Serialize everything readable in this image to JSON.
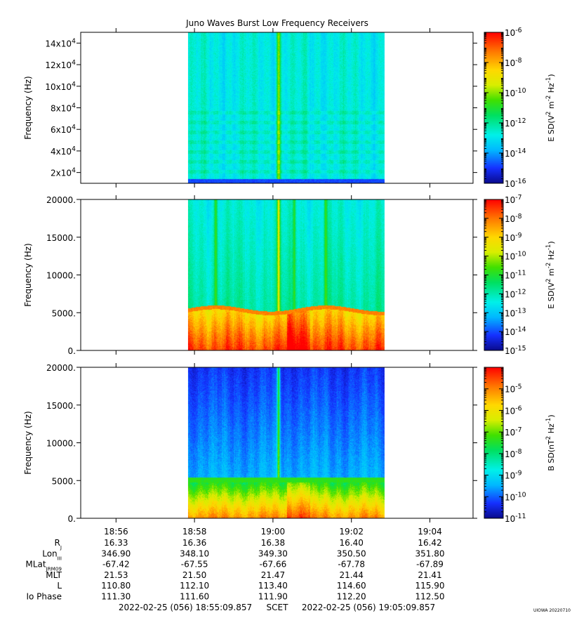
{
  "title": "Juno Waves Burst Low Frequency Receivers",
  "chart_data": [
    {
      "type": "heatmap",
      "name": "panel-1-electric-high",
      "ylabel": "Frequency (Hz)",
      "ylim": [
        10000,
        150000
      ],
      "yticks": [
        {
          "value": 20000,
          "mant": "2x10",
          "exp": "4"
        },
        {
          "value": 40000,
          "mant": "4x10",
          "exp": "4"
        },
        {
          "value": 60000,
          "mant": "6x10",
          "exp": "4"
        },
        {
          "value": 80000,
          "mant": "8x10",
          "exp": "4"
        },
        {
          "value": 100000,
          "mant": "10x10",
          "exp": "4"
        },
        {
          "value": 120000,
          "mant": "12x10",
          "exp": "4"
        },
        {
          "value": 140000,
          "mant": "14x10",
          "exp": "4"
        }
      ],
      "colorbar": {
        "label": "E SD (V^2 m^-2 Hz^-1)",
        "log": true,
        "range": [
          1e-16,
          1e-06
        ],
        "ticks": [
          {
            "mant": "10",
            "exp": "-6"
          },
          {
            "mant": "10",
            "exp": "-8"
          },
          {
            "mant": "10",
            "exp": "-10"
          },
          {
            "mant": "10",
            "exp": "-12"
          },
          {
            "mant": "10",
            "exp": "-14"
          },
          {
            "mant": "10",
            "exp": "-16"
          }
        ]
      },
      "data_time_range": [
        "18:57.9",
        "19:02.9"
      ],
      "features": {
        "background_level_log10": -13,
        "bright_vertical_line_time": "19:00.2",
        "lower_band_hz": 10000
      }
    },
    {
      "type": "heatmap",
      "name": "panel-2-electric-low",
      "ylabel": "Frequency (Hz)",
      "ylim": [
        0,
        20000
      ],
      "yticks": [
        {
          "value": 0,
          "label": "0."
        },
        {
          "value": 5000,
          "label": "5000."
        },
        {
          "value": 10000,
          "label": "10000."
        },
        {
          "value": 15000,
          "label": "15000."
        },
        {
          "value": 20000,
          "label": "20000."
        }
      ],
      "colorbar": {
        "label": "E SD (V^2 m^-2 Hz^-1)",
        "log": true,
        "range": [
          1e-15,
          1e-07
        ],
        "ticks": [
          {
            "mant": "10",
            "exp": "-7"
          },
          {
            "mant": "10",
            "exp": "-8"
          },
          {
            "mant": "10",
            "exp": "-9"
          },
          {
            "mant": "10",
            "exp": "-10"
          },
          {
            "mant": "10",
            "exp": "-11"
          },
          {
            "mant": "10",
            "exp": "-12"
          },
          {
            "mant": "10",
            "exp": "-13"
          },
          {
            "mant": "10",
            "exp": "-14"
          },
          {
            "mant": "10",
            "exp": "-15"
          }
        ]
      },
      "data_time_range": [
        "18:57.9",
        "19:02.9"
      ],
      "features": {
        "band_edge_hz": 5500,
        "vertical_lines": [
          "18:58.6",
          "19:00.2",
          "19:00.6",
          "19:01.4"
        ]
      }
    },
    {
      "type": "heatmap",
      "name": "panel-3-magnetic",
      "ylabel": "Frequency (Hz)",
      "ylim": [
        0,
        20000
      ],
      "yticks": [
        {
          "value": 0,
          "label": "0."
        },
        {
          "value": 5000,
          "label": "5000."
        },
        {
          "value": 10000,
          "label": "10000."
        },
        {
          "value": 15000,
          "label": "15000."
        },
        {
          "value": 20000,
          "label": "20000."
        }
      ],
      "colorbar": {
        "label": "B SD (nT^2 Hz^-1)",
        "log": true,
        "range": [
          1e-11,
          0.0001
        ],
        "ticks": [
          {
            "mant": "10",
            "exp": "-5"
          },
          {
            "mant": "10",
            "exp": "-6"
          },
          {
            "mant": "10",
            "exp": "-7"
          },
          {
            "mant": "10",
            "exp": "-8"
          },
          {
            "mant": "10",
            "exp": "-9"
          },
          {
            "mant": "10",
            "exp": "-10"
          },
          {
            "mant": "10",
            "exp": "-11"
          }
        ]
      },
      "data_time_range": [
        "18:57.9",
        "19:02.9"
      ],
      "features": {
        "band_edge_hz": 5500,
        "vertical_line_time": "19:00.2"
      }
    }
  ],
  "x_axis": {
    "range_minutes": [
      0,
      10
    ],
    "start_offset_seconds": 9.857,
    "ticks": [
      {
        "minute": 0.9,
        "label": "18:56"
      },
      {
        "minute": 2.9,
        "label": "18:58"
      },
      {
        "minute": 4.9,
        "label": "19:00"
      },
      {
        "minute": 6.9,
        "label": "19:02"
      },
      {
        "minute": 8.9,
        "label": "19:04"
      }
    ]
  },
  "ephemeris": [
    {
      "label": "R",
      "sub": "J",
      "values": [
        "16.33",
        "16.36",
        "16.38",
        "16.40",
        "16.42"
      ]
    },
    {
      "label": "Lon",
      "sub": "III",
      "values": [
        "346.90",
        "348.10",
        "349.30",
        "350.50",
        "351.80"
      ]
    },
    {
      "label": "MLat",
      "sub": "JRM09",
      "values": [
        "-67.42",
        "-67.55",
        "-67.66",
        "-67.78",
        "-67.89"
      ]
    },
    {
      "label": "MLT",
      "sub": "",
      "values": [
        "21.53",
        "21.50",
        "21.47",
        "21.44",
        "21.41"
      ]
    },
    {
      "label": "L",
      "sub": "",
      "values": [
        "110.80",
        "112.10",
        "113.40",
        "114.60",
        "115.90"
      ]
    },
    {
      "label": "Io Phase",
      "sub": "",
      "values": [
        "111.30",
        "111.60",
        "111.90",
        "112.20",
        "112.50"
      ]
    }
  ],
  "footer": {
    "start": "2022-02-25 (056) 18:55:09.857",
    "middle": "SCET",
    "end": "2022-02-25 (056) 19:05:09.857",
    "credit": "UIOWA 20220710"
  }
}
